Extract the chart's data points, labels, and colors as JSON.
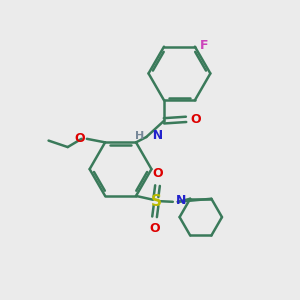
{
  "background_color": "#ebebeb",
  "bond_color": "#3a7a5a",
  "bond_width": 1.8,
  "atom_colors": {
    "F": "#cc44bb",
    "O": "#dd0000",
    "N": "#2222cc",
    "S": "#bbbb00",
    "C": "#3a7a5a",
    "H": "#778899"
  },
  "figsize": [
    3.0,
    3.0
  ],
  "dpi": 100
}
